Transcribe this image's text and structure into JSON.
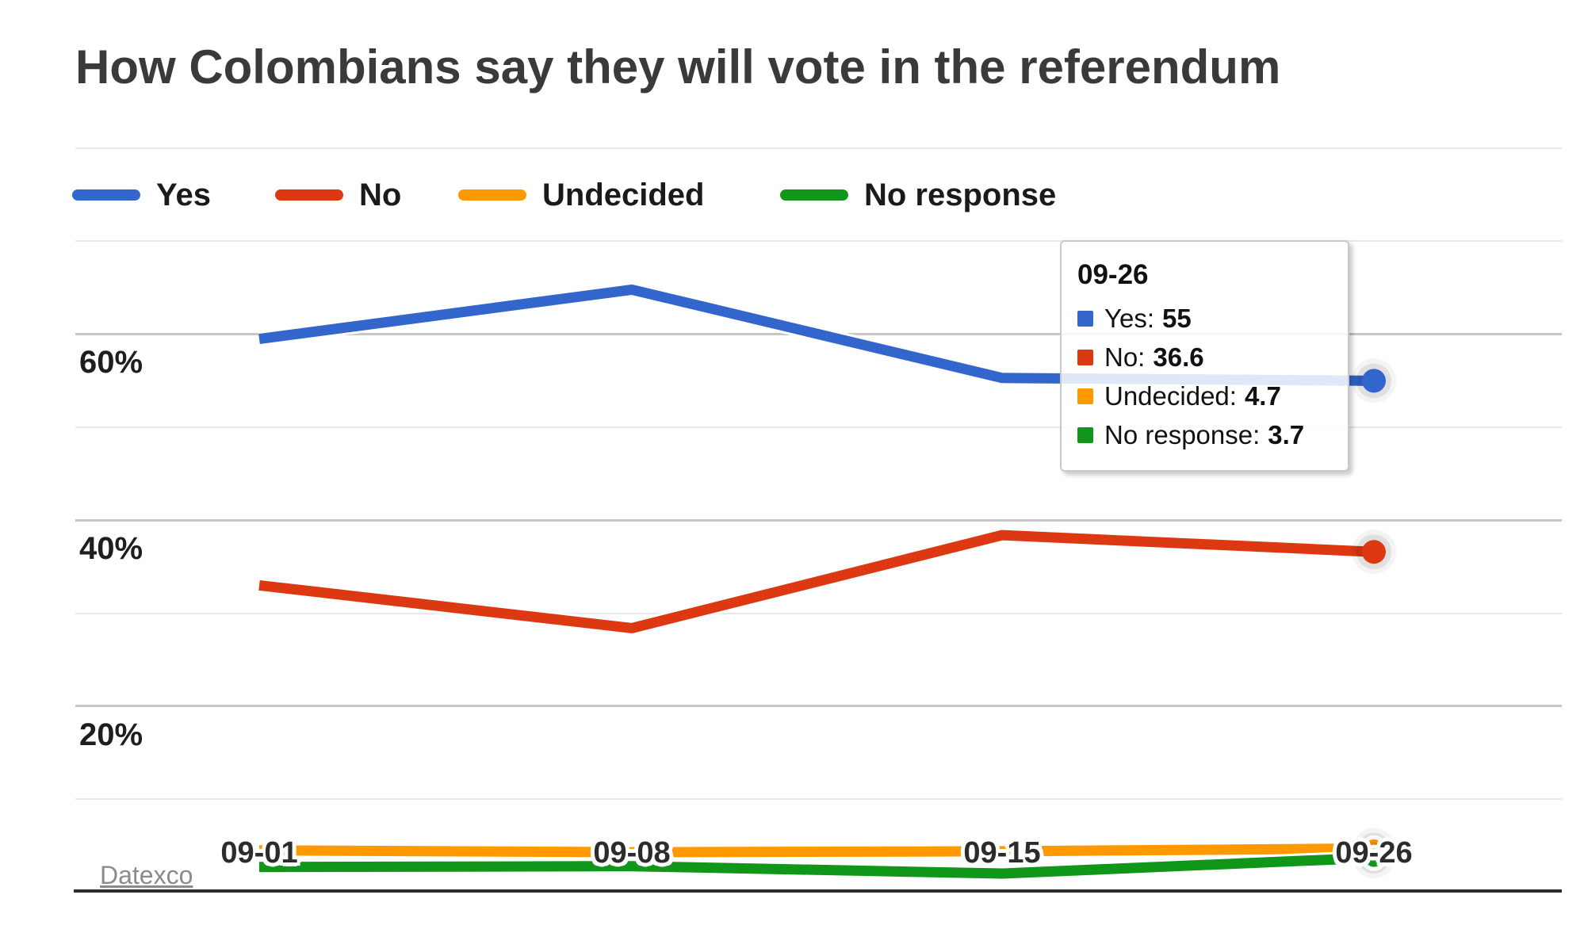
{
  "page": {
    "title": "How Colombians say they will vote in the referendum",
    "source_label": "Datexco"
  },
  "legend": {
    "items": [
      {
        "label": "Yes",
        "color": "#3366cc"
      },
      {
        "label": "No",
        "color": "#dc3912"
      },
      {
        "label": "Undecided",
        "color": "#ff9900"
      },
      {
        "label": "No response",
        "color": "#109618"
      }
    ]
  },
  "tooltip": {
    "title": "09-26",
    "rows": [
      {
        "label": "Yes:",
        "value": "55",
        "color": "#3366cc"
      },
      {
        "label": "No:",
        "value": "36.6",
        "color": "#dc3912"
      },
      {
        "label": "Undecided:",
        "value": "4.7",
        "color": "#ff9900"
      },
      {
        "label": "No response:",
        "value": "3.7",
        "color": "#109618"
      }
    ]
  },
  "chart_data": {
    "type": "line",
    "x": [
      "09-01",
      "09-08",
      "09-15",
      "09-26"
    ],
    "series": [
      {
        "name": "Yes",
        "color": "#3366cc",
        "values": [
          59.5,
          64.8,
          55.3,
          55
        ]
      },
      {
        "name": "No",
        "color": "#dc3912",
        "values": [
          33,
          28.4,
          38.4,
          36.6
        ]
      },
      {
        "name": "Undecided",
        "color": "#ff9900",
        "values": [
          4.5,
          4.3,
          4.4,
          4.7
        ]
      },
      {
        "name": "No response",
        "color": "#109618",
        "values": [
          2.7,
          2.8,
          2.0,
          3.7
        ]
      }
    ],
    "ylim": [
      0,
      80
    ],
    "ytick_step": 10,
    "yticks_labeled": [
      {
        "value": 60,
        "label": "60%"
      },
      {
        "value": 40,
        "label": "40%"
      },
      {
        "value": 20,
        "label": "20%"
      }
    ],
    "grid": true,
    "legend_position": "top",
    "highlighted_x": "09-26"
  }
}
